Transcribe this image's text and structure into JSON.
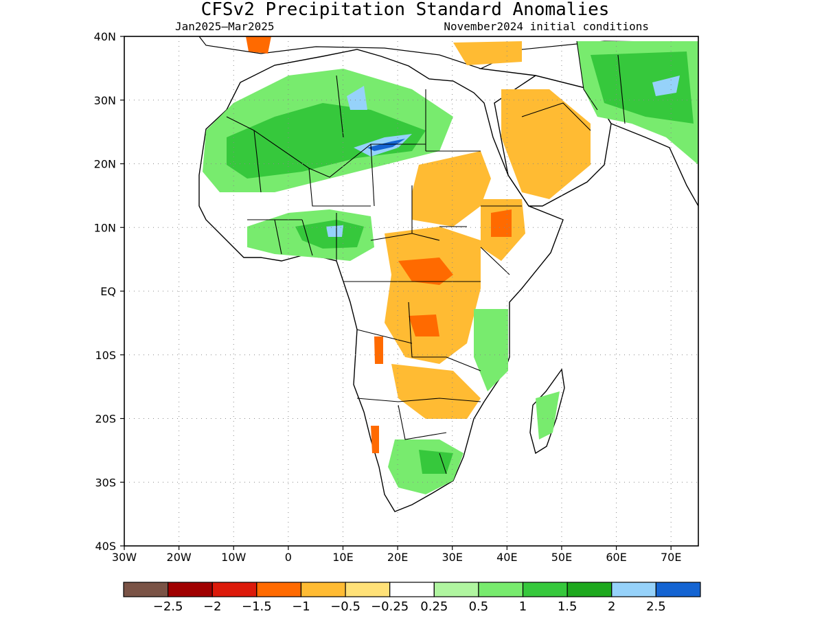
{
  "title": "CFSv2 Precipitation Standard Anomalies",
  "subtitle_left": "Jan2025–Mar2025",
  "subtitle_right": "November2024 initial conditions",
  "map": {
    "lon_range": [
      -30,
      75
    ],
    "lat_range": [
      -40,
      40
    ],
    "lat_ticks": [
      {
        "v": 40,
        "label": "40N"
      },
      {
        "v": 30,
        "label": "30N"
      },
      {
        "v": 20,
        "label": "20N"
      },
      {
        "v": 10,
        "label": "10N"
      },
      {
        "v": 0,
        "label": "EQ"
      },
      {
        "v": -10,
        "label": "10S"
      },
      {
        "v": -20,
        "label": "20S"
      },
      {
        "v": -30,
        "label": "30S"
      },
      {
        "v": -40,
        "label": "40S"
      }
    ],
    "lon_ticks": [
      {
        "v": -30,
        "label": "30W"
      },
      {
        "v": -20,
        "label": "20W"
      },
      {
        "v": -10,
        "label": "10W"
      },
      {
        "v": 0,
        "label": "0"
      },
      {
        "v": 10,
        "label": "10E"
      },
      {
        "v": 20,
        "label": "20E"
      },
      {
        "v": 30,
        "label": "30E"
      },
      {
        "v": 40,
        "label": "40E"
      },
      {
        "v": 50,
        "label": "50E"
      },
      {
        "v": 60,
        "label": "60E"
      },
      {
        "v": 70,
        "label": "70E"
      }
    ],
    "grid": true
  },
  "colorbar": {
    "colors": [
      "#7a5346",
      "#a00000",
      "#dc1a0a",
      "#ff6a00",
      "#ffbb33",
      "#ffe178",
      "#ffffff",
      "#b0f5a0",
      "#78eb6e",
      "#36c83c",
      "#1ea81e",
      "#96d2fa",
      "#1464d2"
    ],
    "labels": [
      "−2.5",
      "−2",
      "−1.5",
      "−1",
      "−0.5",
      "−0.25",
      "0.25",
      "0.5",
      "1",
      "1.5",
      "2",
      "2.5"
    ]
  }
}
